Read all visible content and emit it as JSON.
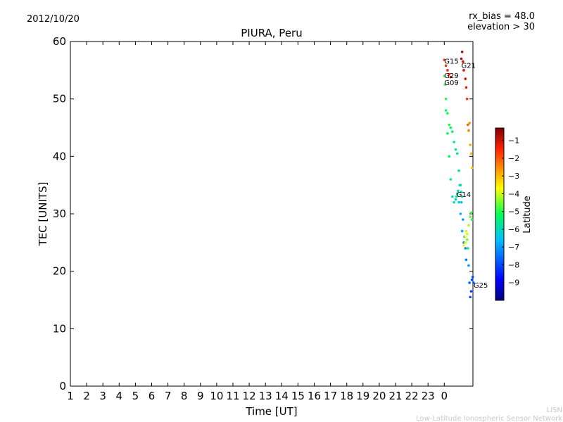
{
  "header": {
    "date": "2012/10/20",
    "rx_bias": "rx_bias = 48.0",
    "elevation": "elevation > 30"
  },
  "footer": {
    "org_short": "LISN",
    "org_long": "Low-Latitude Ionospheric Sensor Network"
  },
  "chart_data": {
    "type": "scatter",
    "title": "PIURA, Peru",
    "xlabel": "Time [UT]",
    "ylabel": "TEC [UNITS]",
    "ylim": [
      0,
      60
    ],
    "yticks": [
      0,
      10,
      20,
      30,
      40,
      50,
      60
    ],
    "xticks": [
      "1",
      "2",
      "3",
      "4",
      "5",
      "6",
      "7",
      "8",
      "9",
      "10",
      "11",
      "12",
      "13",
      "14",
      "15",
      "16",
      "17",
      "18",
      "19",
      "20",
      "21",
      "22",
      "23",
      "0"
    ],
    "colorbar": {
      "label": "Latitude",
      "range": [
        -10,
        -0.3
      ],
      "ticks": [
        -1,
        -2,
        -3,
        -4,
        -5,
        -6,
        -7,
        -8,
        -9
      ]
    },
    "series": [
      {
        "name": "G15",
        "label_at": [
          24.0,
          56.5
        ],
        "x": [
          24.0,
          24.1,
          24.2,
          24.3,
          24.4
        ],
        "y": [
          56.8,
          55.8,
          55.0,
          54.3,
          53.8
        ],
        "lat": [
          -1.6,
          -1.6,
          -1.5,
          -1.5,
          -1.4
        ]
      },
      {
        "name": "G21",
        "label_at": [
          25.05,
          55.8
        ],
        "x": [
          25.05,
          25.1,
          25.15,
          25.2,
          25.3,
          25.35,
          25.4,
          25.45,
          25.5,
          25.55,
          25.6,
          25.65,
          25.7
        ],
        "y": [
          57.0,
          58.2,
          56.5,
          55.0,
          53.5,
          52.0,
          50.0,
          45.5,
          44.5,
          45.8,
          42.0,
          40.5,
          38.0
        ],
        "lat": [
          -0.8,
          -0.8,
          -0.9,
          -1.0,
          -1.1,
          -1.3,
          -1.6,
          -2.1,
          -2.4,
          -2.6,
          -2.8,
          -3.0,
          -3.2
        ]
      },
      {
        "name": "G29",
        "label_at": [
          24.0,
          54.0
        ],
        "x": [
          24.0,
          24.05,
          24.1,
          24.2,
          24.3,
          24.4,
          24.5,
          24.6,
          24.7,
          24.8,
          24.9,
          25.0,
          25.05,
          25.1
        ],
        "y": [
          54.0,
          52.5,
          50.0,
          47.5,
          45.5,
          45.0,
          44.3,
          42.5,
          41.2,
          40.5,
          37.5,
          35.0,
          33.8,
          33.0
        ],
        "lat": [
          -4.9,
          -4.9,
          -5.0,
          -5.0,
          -5.1,
          -5.2,
          -5.3,
          -5.4,
          -5.5,
          -5.6,
          -5.7,
          -5.8,
          -5.9,
          -6.0
        ]
      },
      {
        "name": "G09",
        "label_at": [
          24.0,
          52.8
        ],
        "x": [
          24.1,
          24.2,
          24.3,
          24.4,
          24.5,
          24.6,
          24.7,
          24.8,
          24.9,
          25.0,
          25.1,
          25.2
        ],
        "y": [
          48.0,
          44.0,
          40.0,
          36.0,
          33.0,
          32.0,
          32.5,
          33.5,
          32.0,
          30.0,
          27.0,
          25.0
        ],
        "lat": [
          -5.2,
          -5.3,
          -5.4,
          -5.6,
          -5.8,
          -6.0,
          -6.2,
          -6.4,
          -6.6,
          -6.8,
          -7.0,
          -7.2
        ]
      },
      {
        "name": "G14",
        "label_at": [
          24.75,
          33.3
        ],
        "x": [
          24.75,
          24.85,
          24.95,
          25.05,
          25.15,
          25.25,
          25.3,
          25.35
        ],
        "y": [
          33.0,
          34.0,
          35.0,
          32.0,
          29.0,
          26.0,
          24.0,
          22.0
        ],
        "lat": [
          -5.6,
          -5.9,
          -6.2,
          -6.6,
          -7.0,
          -7.2,
          -7.3,
          -7.4
        ]
      },
      {
        "name": "G25",
        "label_at": [
          25.8,
          17.5
        ],
        "x": [
          25.2,
          25.3,
          25.35,
          25.4,
          25.45,
          25.5,
          25.55,
          25.6,
          25.65,
          25.7,
          25.75,
          25.8
        ],
        "y": [
          24.5,
          26.0,
          27.0,
          25.5,
          24.0,
          21.0,
          18.0,
          15.5,
          16.5,
          18.5,
          19.0,
          18.0
        ],
        "lat": [
          -3.5,
          -3.8,
          -4.0,
          -4.5,
          -5.5,
          -7.0,
          -7.8,
          -8.0,
          -8.1,
          -8.0,
          -7.9,
          -7.8
        ]
      },
      {
        "name": "",
        "x": [
          25.3,
          25.4,
          25.5,
          25.6,
          25.65,
          25.7
        ],
        "y": [
          25.0,
          26.5,
          28.0,
          29.5,
          30.2,
          29.0
        ],
        "lat": [
          -3.9,
          -4.0,
          -4.2,
          -4.6,
          -4.8,
          -5.0
        ]
      }
    ]
  }
}
